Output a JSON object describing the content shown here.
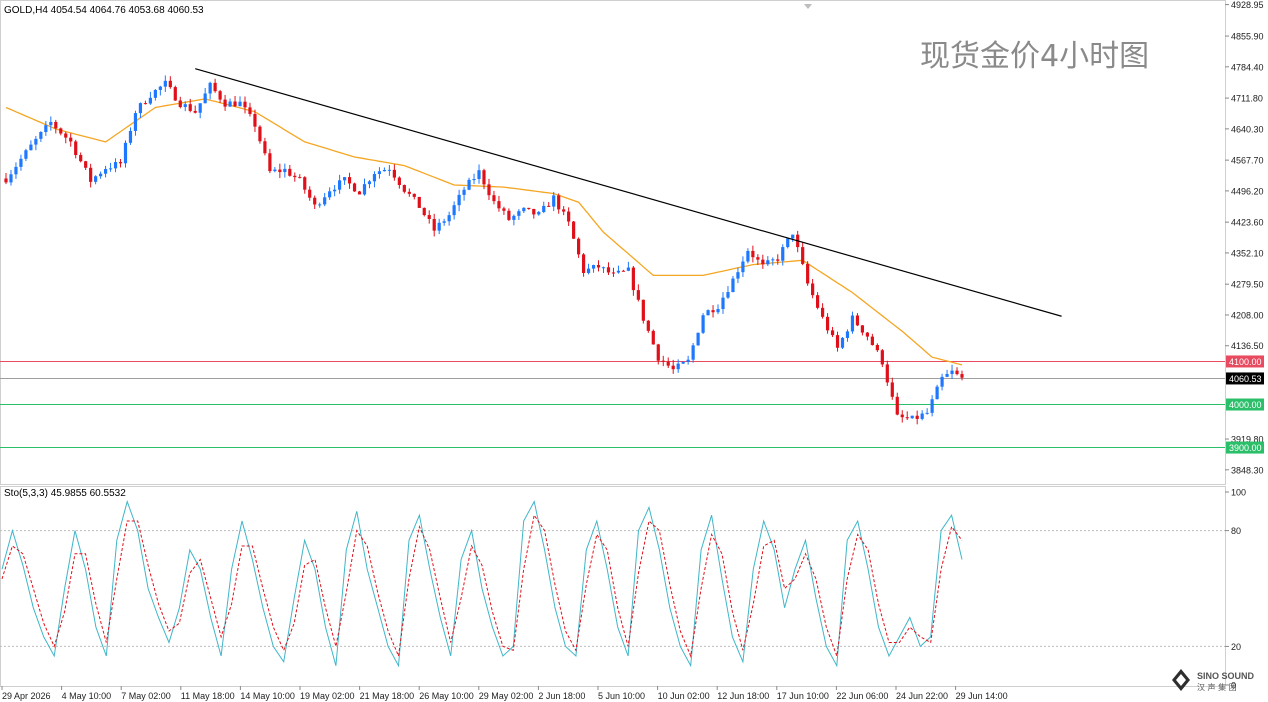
{
  "window": {
    "symbol_header": "GOLD,H4 4054.54 4064.76 4053.68 4060.53",
    "watermark_title": "现货金价4小时图",
    "osc_header": "Sto(5,3,3) 45.9855 60.5532",
    "logo_text_top": "SINO SOUND",
    "logo_text_bottom": "汉 声 集 团"
  },
  "colors": {
    "bull": "#1e78ff",
    "bear": "#e0101a",
    "ma": "#f5a623",
    "trendline": "#000000",
    "level_red": "#e84a5f",
    "level_green": "#2bbf6a",
    "current": "#9e9e9e",
    "stoch_main": "#3fb6c8",
    "stoch_signal": "#e0101a"
  },
  "chart_data": [
    {
      "type": "candlestick",
      "title": "",
      "symbol": "GOLD",
      "timeframe": "H4",
      "ylim": [
        3820,
        4935
      ],
      "y_ticks": [
        "4928.95",
        "4855.90",
        "4784.40",
        "4711.80",
        "4640.30",
        "4567.70",
        "4496.20",
        "4423.60",
        "4352.10",
        "4279.50",
        "4208.00",
        "4136.50",
        "3919.80",
        "3848.30"
      ],
      "x_ticks": [
        "29 Apr 2026",
        "4 May 10:00",
        "7 May 02:00",
        "11 May 18:00",
        "14 May 10:00",
        "19 May 02:00",
        "21 May 18:00",
        "26 May 10:00",
        "29 May 02:00",
        "2 Jun 18:00",
        "5 Jun 10:00",
        "10 Jun 02:00",
        "12 Jun 18:00",
        "17 Jun 10:00",
        "22 Jun 06:00",
        "24 Jun 22:00",
        "29 Jun 14:00"
      ],
      "price_path": [
        [
          0,
          4525
        ],
        [
          5,
          4600
        ],
        [
          9,
          4655
        ],
        [
          13,
          4610
        ],
        [
          17,
          4520
        ],
        [
          20,
          4550
        ],
        [
          23,
          4560
        ],
        [
          26,
          4680
        ],
        [
          29,
          4720
        ],
        [
          32,
          4745
        ],
        [
          35,
          4700
        ],
        [
          38,
          4680
        ],
        [
          41,
          4740
        ],
        [
          44,
          4700
        ],
        [
          47,
          4700
        ],
        [
          50,
          4650
        ],
        [
          53,
          4540
        ],
        [
          56,
          4545
        ],
        [
          59,
          4520
        ],
        [
          62,
          4460
        ],
        [
          65,
          4500
        ],
        [
          68,
          4520
        ],
        [
          71,
          4495
        ],
        [
          74,
          4540
        ],
        [
          77,
          4550
        ],
        [
          80,
          4500
        ],
        [
          83,
          4460
        ],
        [
          86,
          4405
        ],
        [
          89,
          4440
        ],
        [
          92,
          4500
        ],
        [
          95,
          4540
        ],
        [
          98,
          4470
        ],
        [
          101,
          4430
        ],
        [
          104,
          4450
        ],
        [
          107,
          4440
        ],
        [
          110,
          4480
        ],
        [
          113,
          4420
        ],
        [
          116,
          4310
        ],
        [
          119,
          4320
        ],
        [
          122,
          4300
        ],
        [
          125,
          4310
        ],
        [
          128,
          4200
        ],
        [
          131,
          4110
        ],
        [
          134,
          4080
        ],
        [
          137,
          4100
        ],
        [
          140,
          4210
        ],
        [
          143,
          4230
        ],
        [
          146,
          4290
        ],
        [
          149,
          4360
        ],
        [
          152,
          4320
        ],
        [
          155,
          4340
        ],
        [
          158,
          4400
        ],
        [
          161,
          4280
        ],
        [
          164,
          4200
        ],
        [
          167,
          4130
        ],
        [
          170,
          4200
        ],
        [
          173,
          4160
        ],
        [
          176,
          4100
        ],
        [
          179,
          3970
        ],
        [
          182,
          3965
        ],
        [
          185,
          3980
        ],
        [
          188,
          4060
        ],
        [
          190,
          4075
        ],
        [
          192,
          4060
        ]
      ],
      "moving_average_path": [
        [
          0,
          4690
        ],
        [
          10,
          4640
        ],
        [
          20,
          4610
        ],
        [
          30,
          4690
        ],
        [
          40,
          4710
        ],
        [
          50,
          4680
        ],
        [
          60,
          4610
        ],
        [
          70,
          4575
        ],
        [
          80,
          4555
        ],
        [
          90,
          4510
        ],
        [
          100,
          4505
        ],
        [
          110,
          4490
        ],
        [
          115,
          4470
        ],
        [
          120,
          4400
        ],
        [
          130,
          4300
        ],
        [
          140,
          4300
        ],
        [
          150,
          4325
        ],
        [
          160,
          4335
        ],
        [
          170,
          4260
        ],
        [
          180,
          4170
        ],
        [
          186,
          4110
        ],
        [
          192,
          4092
        ]
      ],
      "trendline": {
        "from": [
          38,
          4780
        ],
        "to": [
          212,
          4205
        ]
      },
      "levels": [
        {
          "value": 4100,
          "label": "4100.00",
          "color": "#e84a5f"
        },
        {
          "value": 4000,
          "label": "4000.00",
          "color": "#2bbf6a"
        },
        {
          "value": 3900,
          "label": "3900.00",
          "color": "#2bbf6a"
        }
      ],
      "current_price": {
        "value": 4060.53,
        "label": "4060.53"
      }
    },
    {
      "type": "line",
      "title": "",
      "indicator": "Sto(5,3,3)",
      "ylim": [
        0,
        100
      ],
      "y_ticks": [
        "100",
        "80",
        "20",
        "0"
      ],
      "levels": [
        80,
        20
      ],
      "series": [
        {
          "values": [
            60,
            80,
            62,
            40,
            25,
            15,
            50,
            80,
            60,
            30,
            15,
            75,
            95,
            80,
            50,
            35,
            22,
            40,
            70,
            60,
            35,
            15,
            60,
            85,
            65,
            40,
            20,
            12,
            45,
            75,
            60,
            30,
            10,
            70,
            90,
            60,
            40,
            20,
            10,
            75,
            88,
            60,
            35,
            15,
            65,
            80,
            50,
            30,
            15,
            20,
            85,
            95,
            70,
            40,
            20,
            15,
            70,
            85,
            60,
            30,
            15,
            80,
            92,
            70,
            40,
            20,
            10,
            70,
            88,
            55,
            25,
            12,
            60,
            85,
            70,
            40,
            60,
            75,
            45,
            20,
            10,
            75,
            85,
            60,
            30,
            15,
            25,
            35,
            20,
            25,
            80,
            88,
            65
          ]
        },
        {
          "values": [
            55,
            72,
            68,
            50,
            32,
            20,
            38,
            68,
            68,
            42,
            22,
            55,
            85,
            85,
            62,
            42,
            28,
            32,
            58,
            65,
            45,
            25,
            42,
            72,
            72,
            50,
            30,
            18,
            32,
            62,
            65,
            40,
            20,
            48,
            80,
            72,
            48,
            28,
            15,
            55,
            82,
            70,
            45,
            22,
            45,
            72,
            62,
            38,
            20,
            18,
            60,
            88,
            80,
            52,
            28,
            18,
            52,
            78,
            70,
            40,
            20,
            58,
            85,
            80,
            52,
            28,
            15,
            50,
            78,
            68,
            38,
            18,
            42,
            72,
            75,
            50,
            55,
            68,
            55,
            30,
            15,
            55,
            78,
            70,
            42,
            22,
            22,
            30,
            25,
            22,
            60,
            82,
            75
          ]
        }
      ]
    }
  ]
}
